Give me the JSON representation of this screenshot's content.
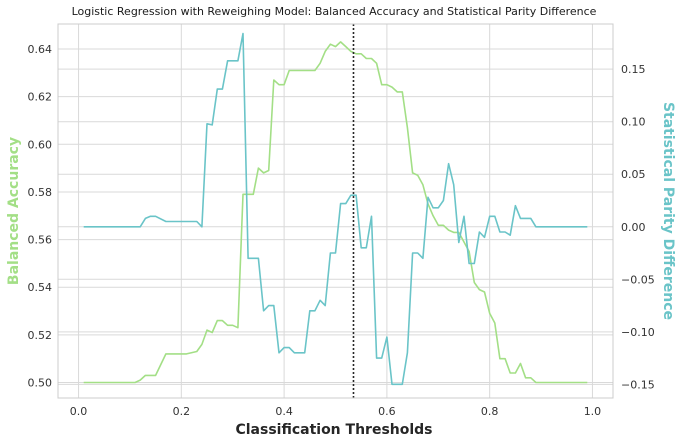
{
  "chart_data": {
    "type": "line",
    "title": "Logistic Regression with Reweighing Model: Balanced Accuracy and Statistical Parity Difference",
    "xlabel": "Classification Thresholds",
    "ylabel_left": "Balanced Accuracy",
    "ylabel_right": "Statistical Parity Difference",
    "xlim": [
      -0.04,
      1.04
    ],
    "ylim_left": [
      0.4935,
      0.6505
    ],
    "ylim_right": [
      -0.163,
      0.193
    ],
    "x_ticks": [
      "0.0",
      "0.2",
      "0.4",
      "0.6",
      "0.8",
      "1.0"
    ],
    "y_left_ticks": [
      "0.50",
      "0.52",
      "0.54",
      "0.56",
      "0.58",
      "0.60",
      "0.62",
      "0.64"
    ],
    "y_right_ticks": [
      "−0.15",
      "−0.10",
      "−0.05",
      "0.00",
      "0.05",
      "0.10",
      "0.15"
    ],
    "grid": true,
    "vline_x": 0.535,
    "colors": {
      "balanced_accuracy": "#a3df86",
      "statistical_parity": "#6ac4c8",
      "vline": "#262626",
      "left_label": "#a3df86",
      "right_label": "#6ac4c8"
    },
    "series": [
      {
        "axis": "left",
        "x": [
          0.01,
          0.03,
          0.05,
          0.07,
          0.09,
          0.11,
          0.12,
          0.13,
          0.14,
          0.15,
          0.17,
          0.18,
          0.19,
          0.21,
          0.23,
          0.24,
          0.25,
          0.26,
          0.27,
          0.28,
          0.29,
          0.3,
          0.31,
          0.32,
          0.33,
          0.34,
          0.35,
          0.36,
          0.37,
          0.38,
          0.39,
          0.4,
          0.41,
          0.42,
          0.44,
          0.46,
          0.47,
          0.48,
          0.49,
          0.5,
          0.51,
          0.52,
          0.53,
          0.54,
          0.55,
          0.56,
          0.57,
          0.58,
          0.59,
          0.6,
          0.61,
          0.62,
          0.63,
          0.64,
          0.65,
          0.66,
          0.67,
          0.68,
          0.69,
          0.7,
          0.71,
          0.72,
          0.73,
          0.74,
          0.75,
          0.76,
          0.77,
          0.78,
          0.79,
          0.8,
          0.81,
          0.82,
          0.83,
          0.84,
          0.85,
          0.86,
          0.87,
          0.88,
          0.89,
          0.91,
          0.93,
          0.95,
          0.97,
          0.99
        ],
        "values": [
          0.5,
          0.5,
          0.5,
          0.5,
          0.5,
          0.5,
          0.501,
          0.503,
          0.503,
          0.503,
          0.512,
          0.512,
          0.512,
          0.512,
          0.513,
          0.516,
          0.522,
          0.521,
          0.526,
          0.526,
          0.524,
          0.524,
          0.523,
          0.579,
          0.579,
          0.579,
          0.59,
          0.588,
          0.589,
          0.627,
          0.625,
          0.625,
          0.631,
          0.631,
          0.631,
          0.631,
          0.634,
          0.639,
          0.642,
          0.641,
          0.643,
          0.641,
          0.639,
          0.638,
          0.638,
          0.636,
          0.636,
          0.634,
          0.625,
          0.625,
          0.624,
          0.622,
          0.622,
          0.607,
          0.588,
          0.587,
          0.583,
          0.575,
          0.57,
          0.566,
          0.566,
          0.564,
          0.563,
          0.563,
          0.559,
          0.555,
          0.542,
          0.539,
          0.538,
          0.529,
          0.525,
          0.51,
          0.51,
          0.504,
          0.504,
          0.508,
          0.502,
          0.502,
          0.5,
          0.5,
          0.5,
          0.5,
          0.5,
          0.5
        ]
      },
      {
        "axis": "right",
        "x": [
          0.01,
          0.03,
          0.05,
          0.07,
          0.09,
          0.11,
          0.12,
          0.13,
          0.14,
          0.15,
          0.17,
          0.18,
          0.19,
          0.21,
          0.23,
          0.24,
          0.25,
          0.26,
          0.27,
          0.28,
          0.29,
          0.3,
          0.31,
          0.32,
          0.33,
          0.34,
          0.35,
          0.36,
          0.37,
          0.38,
          0.39,
          0.4,
          0.41,
          0.42,
          0.44,
          0.45,
          0.46,
          0.47,
          0.48,
          0.49,
          0.5,
          0.51,
          0.52,
          0.53,
          0.54,
          0.55,
          0.56,
          0.57,
          0.58,
          0.59,
          0.6,
          0.61,
          0.62,
          0.63,
          0.64,
          0.65,
          0.66,
          0.67,
          0.68,
          0.69,
          0.7,
          0.71,
          0.72,
          0.73,
          0.74,
          0.75,
          0.76,
          0.77,
          0.78,
          0.79,
          0.8,
          0.81,
          0.82,
          0.83,
          0.84,
          0.85,
          0.86,
          0.87,
          0.88,
          0.89,
          0.91,
          0.93,
          0.95,
          0.97,
          0.99
        ],
        "values": [
          0.0,
          0.0,
          0.0,
          0.0,
          0.0,
          0.0,
          0.0,
          0.008,
          0.01,
          0.01,
          0.005,
          0.005,
          0.005,
          0.005,
          0.005,
          0.0,
          0.098,
          0.097,
          0.131,
          0.131,
          0.158,
          0.158,
          0.158,
          0.184,
          -0.03,
          -0.03,
          -0.03,
          -0.08,
          -0.075,
          -0.075,
          -0.12,
          -0.115,
          -0.115,
          -0.12,
          -0.12,
          -0.08,
          -0.08,
          -0.07,
          -0.075,
          -0.025,
          -0.025,
          0.022,
          0.022,
          0.03,
          0.03,
          -0.02,
          -0.02,
          0.01,
          -0.125,
          -0.125,
          -0.105,
          -0.15,
          -0.15,
          -0.15,
          -0.12,
          -0.025,
          -0.025,
          -0.03,
          0.028,
          0.018,
          0.018,
          0.025,
          0.06,
          0.04,
          -0.015,
          0.01,
          -0.035,
          -0.035,
          -0.005,
          -0.01,
          0.01,
          0.01,
          -0.005,
          -0.005,
          -0.008,
          0.02,
          0.008,
          0.008,
          0.008,
          0.0,
          0.0,
          0.0,
          0.0,
          0.0,
          0.0
        ]
      }
    ]
  }
}
